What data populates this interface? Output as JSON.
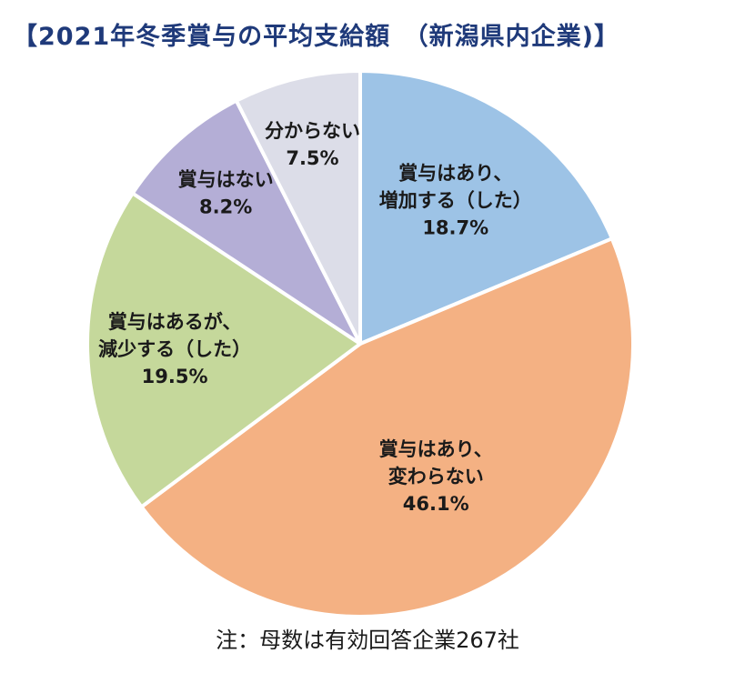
{
  "title": "【2021年冬季賞与の平均支給額　（新潟県内企業)】",
  "footnote": "注：母数は有効回答企業267社",
  "chart_data": {
    "type": "pie",
    "title": "【2021年冬季賞与の平均支給額　（新潟県内企業)】",
    "unit": "%",
    "slices": [
      {
        "label_lines": [
          "賞与はあり、",
          "増加する（した）"
        ],
        "value": 18.7,
        "value_label": "18.7%",
        "color": "#9dc3e6"
      },
      {
        "label_lines": [
          "賞与はあり、",
          "変わらない"
        ],
        "value": 46.1,
        "value_label": "46.1%",
        "color": "#f4b183"
      },
      {
        "label_lines": [
          "賞与はあるが、",
          "減少する（した）"
        ],
        "value": 19.5,
        "value_label": "19.5%",
        "color": "#c5d89b"
      },
      {
        "label_lines": [
          "賞与はない"
        ],
        "value": 8.2,
        "value_label": "8.2%",
        "color": "#b4aed6"
      },
      {
        "label_lines": [
          "分からない"
        ],
        "value": 7.5,
        "value_label": "7.5%",
        "color": "#dcdde8"
      }
    ],
    "start": "12 o'clock",
    "direction": "clockwise"
  }
}
